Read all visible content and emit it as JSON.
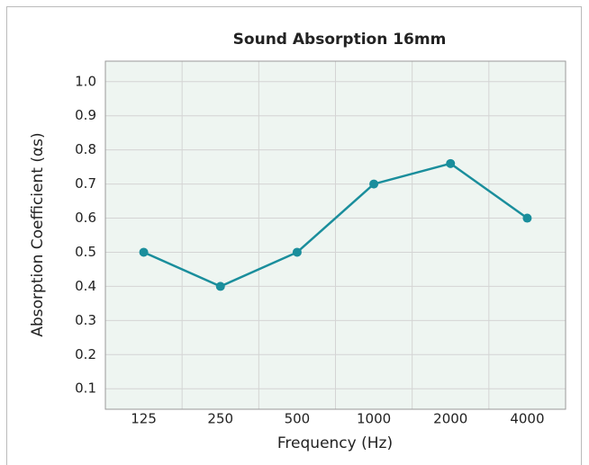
{
  "chart_data": {
    "type": "line",
    "title": "Sound Absorption 16mm",
    "x_label": "Frequency (Hz)",
    "y_label": "Absorption Coefficient (αs)",
    "categories": [
      "125",
      "250",
      "500",
      "1000",
      "2000",
      "4000"
    ],
    "series": [
      {
        "name": "Sound Absorption 16mm",
        "color": "#1a8e9c",
        "values": [
          0.5,
          0.4,
          0.5,
          0.7,
          0.76,
          0.6
        ]
      }
    ],
    "ylim": [
      0.04,
      1.06
    ],
    "yticks": [
      0.1,
      0.2,
      0.3,
      0.4,
      0.5,
      0.6,
      0.7,
      0.8,
      0.9,
      {
        "value": 1,
        "label": "1.0"
      }
    ],
    "grid": true
  }
}
